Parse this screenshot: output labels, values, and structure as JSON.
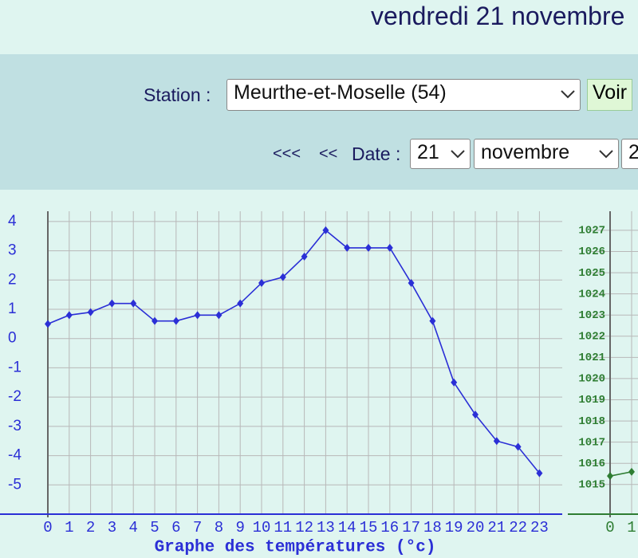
{
  "header": {
    "title": "vendredi 21 novembre"
  },
  "form": {
    "station_label": "Station :",
    "station": "Meurthe-et-Moselle (54)",
    "submit": "Voir",
    "nav_prev_far": "<<<",
    "nav_prev": "<<",
    "date_label": "Date :",
    "day": "21",
    "month": "novembre",
    "year": "2"
  },
  "chart_data": [
    {
      "type": "line",
      "title": "Graphe des températures (°c)",
      "categories": [
        "0",
        "1",
        "2",
        "3",
        "4",
        "5",
        "6",
        "7",
        "8",
        "9",
        "10",
        "11",
        "12",
        "13",
        "14",
        "15",
        "16",
        "17",
        "18",
        "19",
        "20",
        "21",
        "22",
        "23"
      ],
      "values": [
        0.5,
        0.8,
        0.9,
        1.2,
        1.2,
        0.6,
        0.6,
        0.8,
        0.8,
        1.2,
        1.9,
        2.1,
        2.8,
        3.7,
        3.1,
        3.1,
        3.1,
        1.9,
        0.6,
        -1.5,
        -2.6,
        -3.5,
        -3.7,
        -4.6
      ],
      "color": "#2b2fd6",
      "ylim": [
        -6,
        4.35
      ],
      "yticks": [
        -5,
        -4,
        -3,
        -2,
        -1,
        0,
        1,
        2,
        3,
        4
      ],
      "grid": true
    },
    {
      "type": "line",
      "categories": [
        "0",
        "1"
      ],
      "values": [
        1015.4,
        1015.6
      ],
      "color": "#2e7d32",
      "ylim": [
        1013.6,
        1027.9
      ],
      "yticks": [
        1015,
        1016,
        1017,
        1018,
        1019,
        1020,
        1021,
        1022,
        1023,
        1024,
        1025,
        1026,
        1027
      ],
      "grid": true
    }
  ]
}
